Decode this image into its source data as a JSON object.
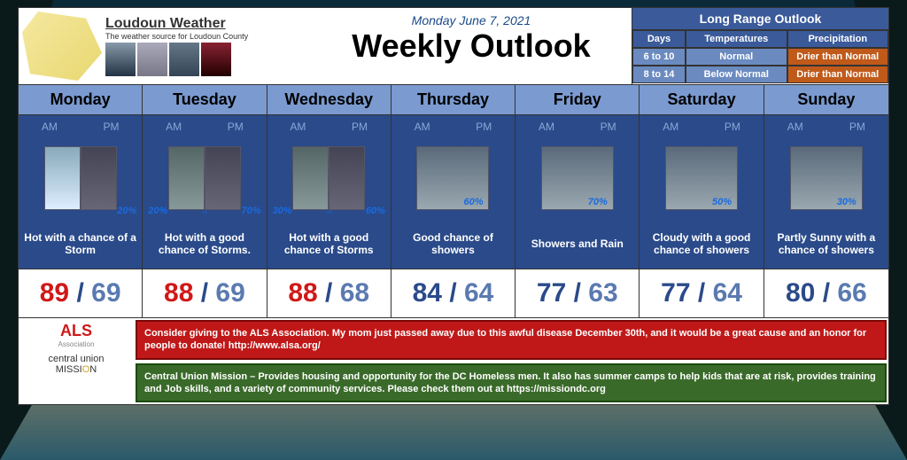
{
  "brand": {
    "title": "Loudoun Weather",
    "subtitle": "The weather source for Loudoun County"
  },
  "header": {
    "date": "Monday June 7, 2021",
    "title": "Weekly Outlook"
  },
  "long_range": {
    "title": "Long Range Outlook",
    "cols": [
      "Days",
      "Temperatures",
      "Precipitation"
    ],
    "rows": [
      {
        "days": "6 to 10",
        "temp": "Normal",
        "precip": "Drier than Normal"
      },
      {
        "days": "8 to 14",
        "temp": "Below Normal",
        "precip": "Drier than Normal"
      }
    ]
  },
  "labels": {
    "am": "AM",
    "pm": "PM"
  },
  "days": [
    {
      "name": "Monday",
      "pct_am": "",
      "pct_pm": "20%",
      "desc": "Hot with a chance of a Storm",
      "hi": "89",
      "lo": "69",
      "hot": true,
      "split": true,
      "am_type": "sky",
      "pm_type": "storm",
      "arrow": ""
    },
    {
      "name": "Tuesday",
      "pct_am": "20%",
      "pct_pm": "70%",
      "desc": "Hot with a good chance of Storms.",
      "hi": "88",
      "lo": "69",
      "hot": true,
      "split": true,
      "am_type": "rain",
      "pm_type": "storm",
      "arrow": "→"
    },
    {
      "name": "Wednesday",
      "pct_am": "30%",
      "pct_pm": "60%",
      "desc": "Hot with a good chance of Storms",
      "hi": "88",
      "lo": "68",
      "hot": true,
      "split": true,
      "am_type": "rain",
      "pm_type": "storm",
      "arrow": "→"
    },
    {
      "name": "Thursday",
      "pct_am": "",
      "pct_pm": "60%",
      "desc": "Good chance of showers",
      "hi": "84",
      "lo": "64",
      "hot": false,
      "split": false,
      "arrow": ""
    },
    {
      "name": "Friday",
      "pct_am": "",
      "pct_pm": "70%",
      "desc": "Showers and Rain",
      "hi": "77",
      "lo": "63",
      "hot": false,
      "split": false,
      "arrow": ""
    },
    {
      "name": "Saturday",
      "pct_am": "",
      "pct_pm": "50%",
      "desc": "Cloudy with a good chance of showers",
      "hi": "77",
      "lo": "64",
      "hot": false,
      "split": false,
      "arrow": ""
    },
    {
      "name": "Sunday",
      "pct_am": "",
      "pct_pm": "30%",
      "desc": "Partly Sunny with a chance of showers",
      "hi": "80",
      "lo": "66",
      "hot": false,
      "split": false,
      "arrow": ""
    }
  ],
  "footer": {
    "als": {
      "logo": "ALS",
      "sub": "Association"
    },
    "cum": {
      "text_a": "central union",
      "text_b": "MISSI",
      "text_o": "O",
      "text_n": "N"
    },
    "banner1": "Consider giving to the ALS Association. My mom just passed away due to this awful disease December 30th, and it would be a great cause and an honor for people to donate! http://www.alsa.org/",
    "banner2": "Central Union Mission – Provides housing and opportunity for the DC Homeless men. It also has summer camps to help kids that are at risk, provides training and Job skills, and a variety of community services. Please check them out at https://missiondc.org"
  }
}
